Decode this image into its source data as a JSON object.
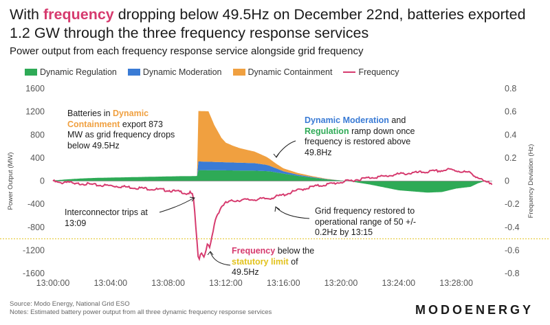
{
  "title": {
    "part1": "With ",
    "highlight": "frequency",
    "part2": " dropping below 49.5Hz on December 22nd, batteries exported 1.2 GW through the three frequency response services"
  },
  "subtitle": "Power output from each frequency response service alongside grid frequency",
  "legend": [
    {
      "label": "Dynamic Regulation",
      "color": "#2eaa56"
    },
    {
      "label": "Dynamic Moderation",
      "color": "#3a7bd5"
    },
    {
      "label": "Dynamic Containment",
      "color": "#f0a040"
    },
    {
      "label": "Frequency",
      "color": "#d63a6e"
    }
  ],
  "annotations": {
    "containment": {
      "t1": "Batteries in ",
      "h1": "Dynamic Containment",
      "t2": " export 873 MW as grid frequency drops below 49.5Hz"
    },
    "moderation": {
      "h1": "Dynamic Moderation",
      "t1": " and ",
      "h2": "Regulation",
      "t2": " ramp down once frequency is restored above 49.8Hz"
    },
    "interconnector": {
      "text": "Interconnector trips at 13:09"
    },
    "restored": {
      "text": "Grid frequency restored to operational range of 50 +/- 0.2Hz by 13:15"
    },
    "statutory": {
      "h1": "Frequency",
      "t1": " below the ",
      "h2": "statutory limit",
      "t2": " of 49.5Hz"
    }
  },
  "source": "Source: Modo Energy, National Grid ESO",
  "notes": "Notes: Estimated battery power output from all three dynamic frequency response services",
  "logo": "MODOENERGY",
  "chart_data": {
    "type": "area",
    "xlabel": "",
    "ylabel": "Power Output (MW)",
    "y2label": "Frequency Deviation (Hz)",
    "ylim": [
      -1600,
      1600
    ],
    "y2lim": [
      -0.8,
      0.8
    ],
    "yticks": [
      -1600,
      -1200,
      -800,
      -400,
      0,
      400,
      800,
      1200,
      1600
    ],
    "yticklabels": [
      "-1600",
      "-1200",
      "-800",
      "-400",
      "0",
      "400",
      "800",
      "1200",
      "1600"
    ],
    "y2ticks": [
      -0.8,
      -0.6,
      -0.4,
      -0.2,
      0,
      0.2,
      0.4,
      0.6,
      0.8
    ],
    "y2ticklabels": [
      "-0.8",
      "-0.6",
      "-0.4",
      "-0.2",
      "0",
      "0.2",
      "0.4",
      "0.6",
      "0.8"
    ],
    "xlim": [
      0,
      30.5
    ],
    "xticks": [
      0,
      4,
      8,
      12,
      16,
      20,
      24,
      28
    ],
    "xticklabels": [
      "13:00:00",
      "13:04:00",
      "13:08:00",
      "13:12:00",
      "13:16:00",
      "13:20:00",
      "13:24:00",
      "13:28:00"
    ],
    "statutory_limit": -0.5,
    "grid": false,
    "colors": {
      "regulation": "#2eaa56",
      "moderation": "#3a7bd5",
      "containment": "#f0a040",
      "frequency": "#d63a6e",
      "limit": "#e2c21c"
    },
    "series": [
      {
        "name": "Dynamic Regulation",
        "x": [
          0,
          1,
          2,
          3,
          4,
          5,
          6,
          7,
          8,
          9,
          9.6,
          10,
          10.1,
          12,
          14,
          15,
          16,
          17,
          18,
          19,
          20,
          20.5,
          21,
          22,
          23,
          24,
          25,
          26,
          27,
          27.5,
          28,
          29,
          29.5,
          30,
          30.5
        ],
        "values": [
          10,
          30,
          45,
          55,
          60,
          65,
          70,
          75,
          80,
          85,
          85,
          88,
          190,
          185,
          180,
          170,
          130,
          90,
          60,
          30,
          10,
          0,
          -20,
          -60,
          -110,
          -160,
          -180,
          -200,
          -190,
          -160,
          -130,
          -100,
          -40,
          0,
          0
        ]
      },
      {
        "name": "Dynamic Moderation",
        "x": [
          0,
          9.6,
          10,
          10.1,
          12,
          14,
          14.8,
          15.5,
          16,
          17,
          18,
          19,
          20,
          21,
          22,
          24,
          26,
          28,
          29.5,
          30,
          30.5
        ],
        "values": [
          0,
          0,
          0,
          150,
          140,
          130,
          110,
          70,
          40,
          20,
          10,
          5,
          0,
          0,
          0,
          0,
          0,
          0,
          0,
          0,
          0
        ]
      },
      {
        "name": "Dynamic Containment",
        "x": [
          0,
          9.6,
          10,
          10.1,
          10.8,
          11.2,
          11.7,
          12,
          12.5,
          13,
          14,
          14.8,
          15.5,
          16,
          17,
          18,
          19,
          20,
          21,
          22,
          24,
          26,
          28,
          30,
          30.5
        ],
        "values": [
          0,
          0,
          0,
          873,
          873,
          640,
          420,
          340,
          290,
          250,
          200,
          140,
          80,
          50,
          30,
          15,
          5,
          0,
          0,
          0,
          0,
          0,
          0,
          0,
          0
        ]
      },
      {
        "name": "Frequency",
        "x": [
          0,
          0.5,
          1,
          1.5,
          2,
          3,
          4,
          5,
          6,
          7,
          8,
          8.5,
          9,
          9.3,
          9.5,
          9.7,
          9.8,
          10.1,
          10.3,
          10.5,
          10.7,
          10.9,
          11.1,
          11.3,
          11.7,
          12,
          12.5,
          13,
          14,
          15,
          16,
          17,
          18,
          19,
          20,
          21,
          22,
          23,
          24,
          25,
          26,
          27,
          27.5,
          28,
          28.5,
          29,
          29.5,
          30,
          30.5
        ],
        "values": [
          0.0,
          -0.02,
          0.0,
          -0.03,
          -0.02,
          -0.035,
          -0.04,
          -0.05,
          -0.06,
          -0.07,
          -0.08,
          -0.09,
          -0.095,
          -0.11,
          -0.1,
          -0.12,
          -0.2,
          -0.69,
          -0.61,
          -0.66,
          -0.55,
          -0.58,
          -0.45,
          -0.32,
          -0.22,
          -0.19,
          -0.17,
          -0.165,
          -0.16,
          -0.15,
          -0.12,
          -0.08,
          -0.05,
          -0.03,
          -0.01,
          0.01,
          0.03,
          0.04,
          0.06,
          0.07,
          0.08,
          0.09,
          0.1,
          0.09,
          0.08,
          0.07,
          0.03,
          -0.01,
          -0.02
        ]
      }
    ]
  }
}
